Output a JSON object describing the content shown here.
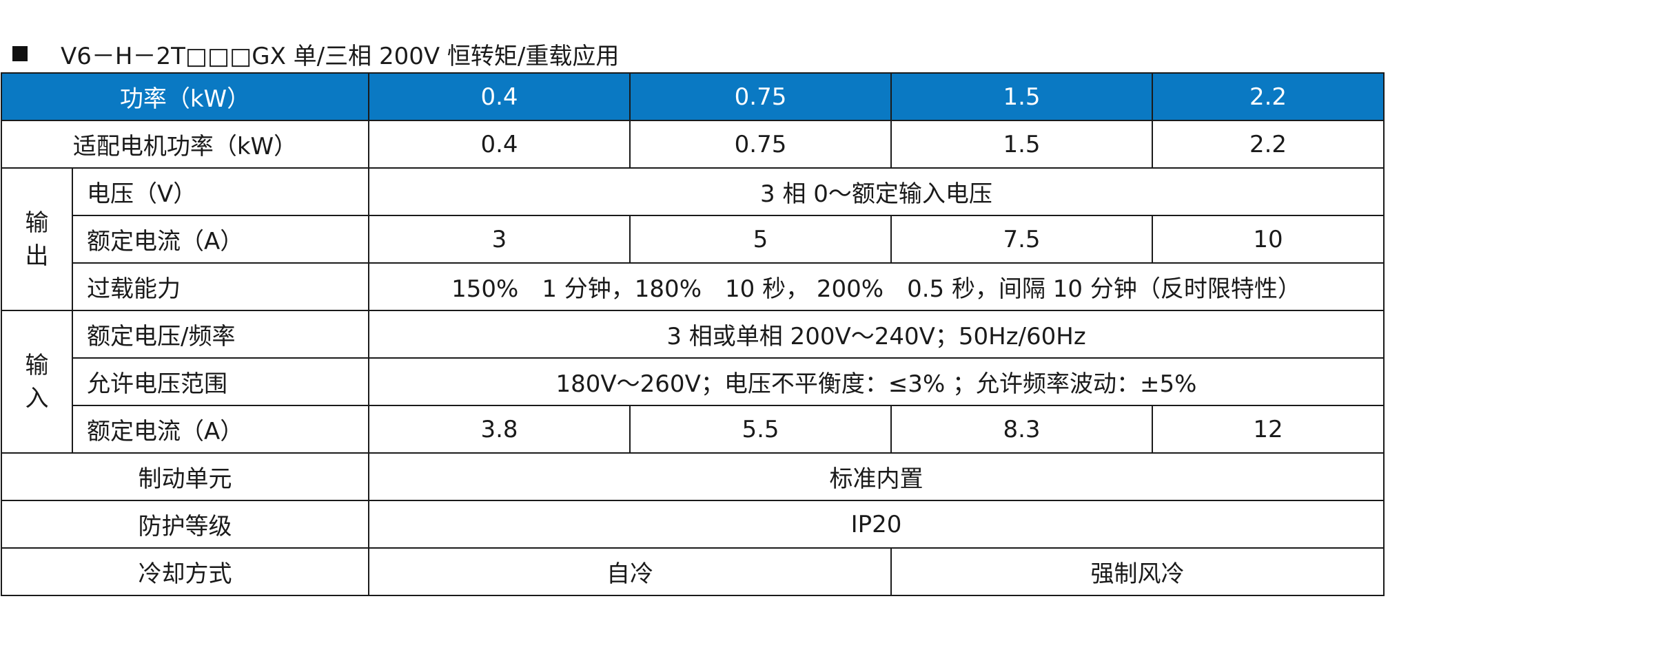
{
  "heading": {
    "bullet": "■",
    "text": "V6－H－2T□□□GX 单/三相 200V 恒转矩/重载应用"
  },
  "colors": {
    "header_bg": "#0a79c3",
    "header_text": "#ffffff",
    "border": "#1a1a1a"
  },
  "table": {
    "power": {
      "label": "功率（kW）",
      "values": [
        "0.4",
        "0.75",
        "1.5",
        "2.2"
      ]
    },
    "motor_power": {
      "label": "适配电机功率（kW）",
      "values": [
        "0.4",
        "0.75",
        "1.5",
        "2.2"
      ]
    },
    "output": {
      "group": "输出",
      "voltage": {
        "label": "电压（V）",
        "value": "3 相 0～额定输入电压"
      },
      "rated_current": {
        "label": "额定电流（A）",
        "values": [
          "3",
          "5",
          "7.5",
          "10"
        ]
      },
      "overload": {
        "label": "过载能力",
        "value": "150%　1 分钟，180%　10 秒， 200%　0.5 秒，间隔 10 分钟（反时限特性）"
      }
    },
    "input": {
      "group": "输入",
      "rated_voltage_freq": {
        "label": "额定电压/频率",
        "value": "3 相或单相 200V～240V；50Hz/60Hz"
      },
      "allowed_voltage_range": {
        "label": "允许电压范围",
        "value": "180V～260V；电压不平衡度：≤3% ；允许频率波动：±5%"
      },
      "rated_current": {
        "label": "额定电流（A）",
        "values": [
          "3.8",
          "5.5",
          "8.3",
          "12"
        ]
      }
    },
    "braking_unit": {
      "label": "制动单元",
      "value": "标准内置"
    },
    "protection_class": {
      "label": "防护等级",
      "value": "IP20"
    },
    "cooling": {
      "label": "冷却方式",
      "values": [
        "自冷",
        "强制风冷"
      ]
    }
  }
}
